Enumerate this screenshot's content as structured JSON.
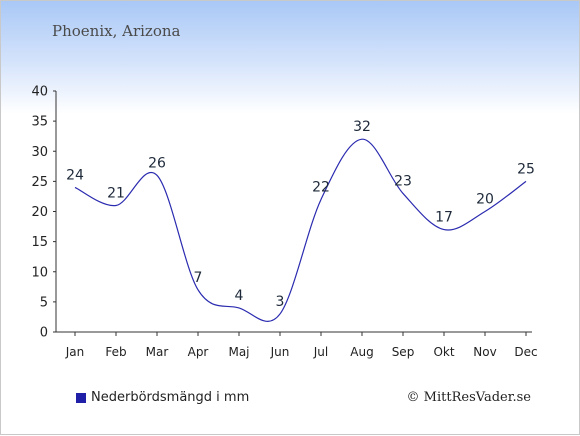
{
  "title": "Phoenix, Arizona",
  "legend": {
    "label": "Nederbördsmängd i mm"
  },
  "credit": "© MittResVader.se",
  "colors": {
    "line": "#2b2bb0",
    "swatch": "#1f1fa8",
    "text": "#222222"
  },
  "chart_data": {
    "type": "line",
    "categories": [
      "Jan",
      "Feb",
      "Mar",
      "Apr",
      "Maj",
      "Jun",
      "Jul",
      "Aug",
      "Sep",
      "Okt",
      "Nov",
      "Dec"
    ],
    "values": [
      24,
      21,
      26,
      7,
      4,
      3,
      22,
      32,
      23,
      17,
      20,
      25
    ],
    "data_labels": [
      "24",
      "21",
      "26",
      "7",
      "4",
      "3",
      "22",
      "32",
      "23",
      "17",
      "20",
      "25"
    ],
    "yticks": [
      "0",
      "5",
      "10",
      "15",
      "20",
      "25",
      "30",
      "35",
      "40"
    ],
    "ylim": [
      0,
      40
    ],
    "grid": false,
    "legend_position": "bottom-left"
  }
}
